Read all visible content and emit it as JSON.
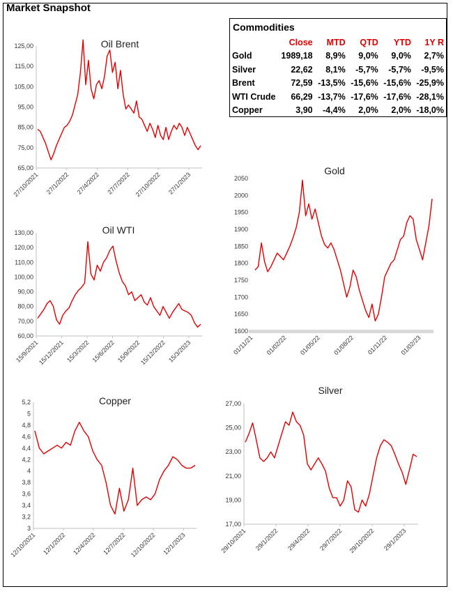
{
  "page": {
    "title": "Market Snapshot"
  },
  "table": {
    "title": "Commodities",
    "headers": [
      "",
      "Close",
      "MTD",
      "QTD",
      "YTD",
      "1Y R"
    ],
    "rows": [
      [
        "Gold",
        "1989,18",
        "8,9%",
        "9,0%",
        "9,0%",
        "2,7%"
      ],
      [
        "Silver",
        "22,62",
        "8,1%",
        "-5,7%",
        "-5,7%",
        "-9,5%"
      ],
      [
        "Brent",
        "72,59",
        "-13,5%",
        "-15,6%",
        "-15,6%",
        "-25,9%"
      ],
      [
        "WTI Crude",
        "66,29",
        "-13,7%",
        "-17,6%",
        "-17,6%",
        "-28,1%"
      ],
      [
        "Copper",
        "3,90",
        "-4,4%",
        "2,0%",
        "2,0%",
        "-18,0%"
      ]
    ],
    "header_color": "#e00000"
  },
  "colors": {
    "line": "#e00000",
    "axis": "#bfbfbf"
  },
  "chart_data": [
    {
      "id": "brent",
      "type": "line",
      "title": "Oil Brent",
      "y_ticks": [
        "125,00",
        "115,00",
        "105,00",
        "95,00",
        "85,00",
        "75,00",
        "65,00"
      ],
      "ylim": [
        65,
        125
      ],
      "x_ticks": [
        "27/10/2021",
        "27/1/2022",
        "27/4/2022",
        "27/7/2022",
        "27/10/2022",
        "27/1/2023"
      ],
      "series": [
        {
          "values": [
            84,
            83,
            80,
            77,
            73,
            69,
            72,
            76,
            79,
            82,
            85,
            86,
            88,
            91,
            96,
            101,
            112,
            128,
            106,
            118,
            104,
            99,
            106,
            108,
            104,
            110,
            120,
            123,
            112,
            117,
            104,
            113,
            101,
            94,
            96,
            94,
            92,
            98,
            90,
            89,
            86,
            83,
            87,
            84,
            80,
            86,
            81,
            79,
            85,
            79,
            83,
            86,
            84,
            87,
            85,
            81,
            85,
            82,
            79,
            76,
            74,
            76
          ]
        }
      ]
    },
    {
      "id": "wti",
      "type": "line",
      "title": "Oil WTI",
      "y_ticks": [
        "130,00",
        "120,00",
        "110,00",
        "100,00",
        "90,00",
        "80,00",
        "70,00",
        "60,00"
      ],
      "ylim": [
        60,
        130
      ],
      "x_ticks": [
        "15/9/2021",
        "15/12/2021",
        "15/3/2022",
        "15/6/2022",
        "15/9/2022",
        "15/12/2022",
        "15/3/2023"
      ],
      "series": [
        {
          "values": [
            72,
            75,
            78,
            82,
            84,
            80,
            71,
            68,
            74,
            77,
            79,
            84,
            88,
            91,
            93,
            96,
            124,
            102,
            98,
            108,
            104,
            110,
            113,
            118,
            121,
            111,
            103,
            97,
            94,
            88,
            90,
            84,
            86,
            88,
            83,
            81,
            86,
            80,
            77,
            74,
            80,
            76,
            72,
            76,
            79,
            82,
            78,
            77,
            76,
            74,
            69,
            66,
            68
          ]
        }
      ]
    },
    {
      "id": "gold",
      "type": "line",
      "title": "Gold",
      "y_ticks": [
        "2050",
        "2000",
        "1950",
        "1900",
        "1850",
        "1800",
        "1750",
        "1700",
        "1650",
        "1600"
      ],
      "ylim": [
        1600,
        2050
      ],
      "x_ticks": [
        "01/11/21",
        "01/02/22",
        "01/05/22",
        "01/08/22",
        "01/11/22",
        "01/02/23"
      ],
      "series": [
        {
          "values": [
            1780,
            1790,
            1860,
            1805,
            1775,
            1790,
            1810,
            1830,
            1820,
            1810,
            1830,
            1850,
            1875,
            1905,
            1950,
            2045,
            1940,
            1975,
            1930,
            1960,
            1920,
            1880,
            1855,
            1845,
            1860,
            1840,
            1810,
            1780,
            1740,
            1700,
            1730,
            1780,
            1760,
            1720,
            1690,
            1660,
            1640,
            1680,
            1630,
            1650,
            1700,
            1760,
            1780,
            1800,
            1810,
            1840,
            1870,
            1880,
            1920,
            1940,
            1930,
            1870,
            1840,
            1810,
            1860,
            1910,
            1990
          ]
        }
      ]
    },
    {
      "id": "copper",
      "type": "line",
      "title": "Copper",
      "y_ticks": [
        "5,2",
        "5",
        "4,8",
        "4,6",
        "4,4",
        "4,2",
        "4",
        "3,8",
        "3,6",
        "3,4",
        "3,2",
        "3"
      ],
      "ylim": [
        3,
        5.2
      ],
      "x_ticks": [
        "12/10/2021",
        "12/1/2022",
        "12/4/2022",
        "12/7/2022",
        "12/10/2022",
        "12/1/2023"
      ],
      "series": [
        {
          "values": [
            4.7,
            4.4,
            4.3,
            4.35,
            4.4,
            4.45,
            4.4,
            4.5,
            4.45,
            4.7,
            4.85,
            4.7,
            4.6,
            4.35,
            4.2,
            4.1,
            3.8,
            3.4,
            3.25,
            3.7,
            3.3,
            3.5,
            4.05,
            3.4,
            3.5,
            3.55,
            3.5,
            3.6,
            3.85,
            4.0,
            4.1,
            4.25,
            4.2,
            4.1,
            4.05,
            4.05,
            4.1
          ]
        }
      ]
    },
    {
      "id": "silver",
      "type": "line",
      "title": "Silver",
      "y_ticks": [
        "27,00",
        "25,00",
        "23,00",
        "21,00",
        "19,00",
        "17,00"
      ],
      "ylim": [
        17,
        27
      ],
      "x_ticks": [
        "29/10/2021",
        "29/1/2022",
        "29/4/2022",
        "29/7/2022",
        "29/10/2022",
        "29/1/2023"
      ],
      "series": [
        {
          "values": [
            23.8,
            24.5,
            25.4,
            24,
            22.5,
            22.2,
            22.5,
            23,
            22.5,
            23.5,
            24.5,
            25.5,
            25.2,
            26.3,
            25.5,
            25.2,
            24.4,
            22,
            21.5,
            22,
            22.5,
            22,
            21.4,
            20,
            19.2,
            19.2,
            18.5,
            19,
            20.6,
            20.1,
            18.2,
            18,
            19,
            18.5,
            19.5,
            21,
            22.5,
            23.5,
            24,
            23.8,
            23.5,
            22.8,
            22,
            21.3,
            20.3,
            21.5,
            22.8,
            22.6
          ]
        }
      ]
    }
  ]
}
